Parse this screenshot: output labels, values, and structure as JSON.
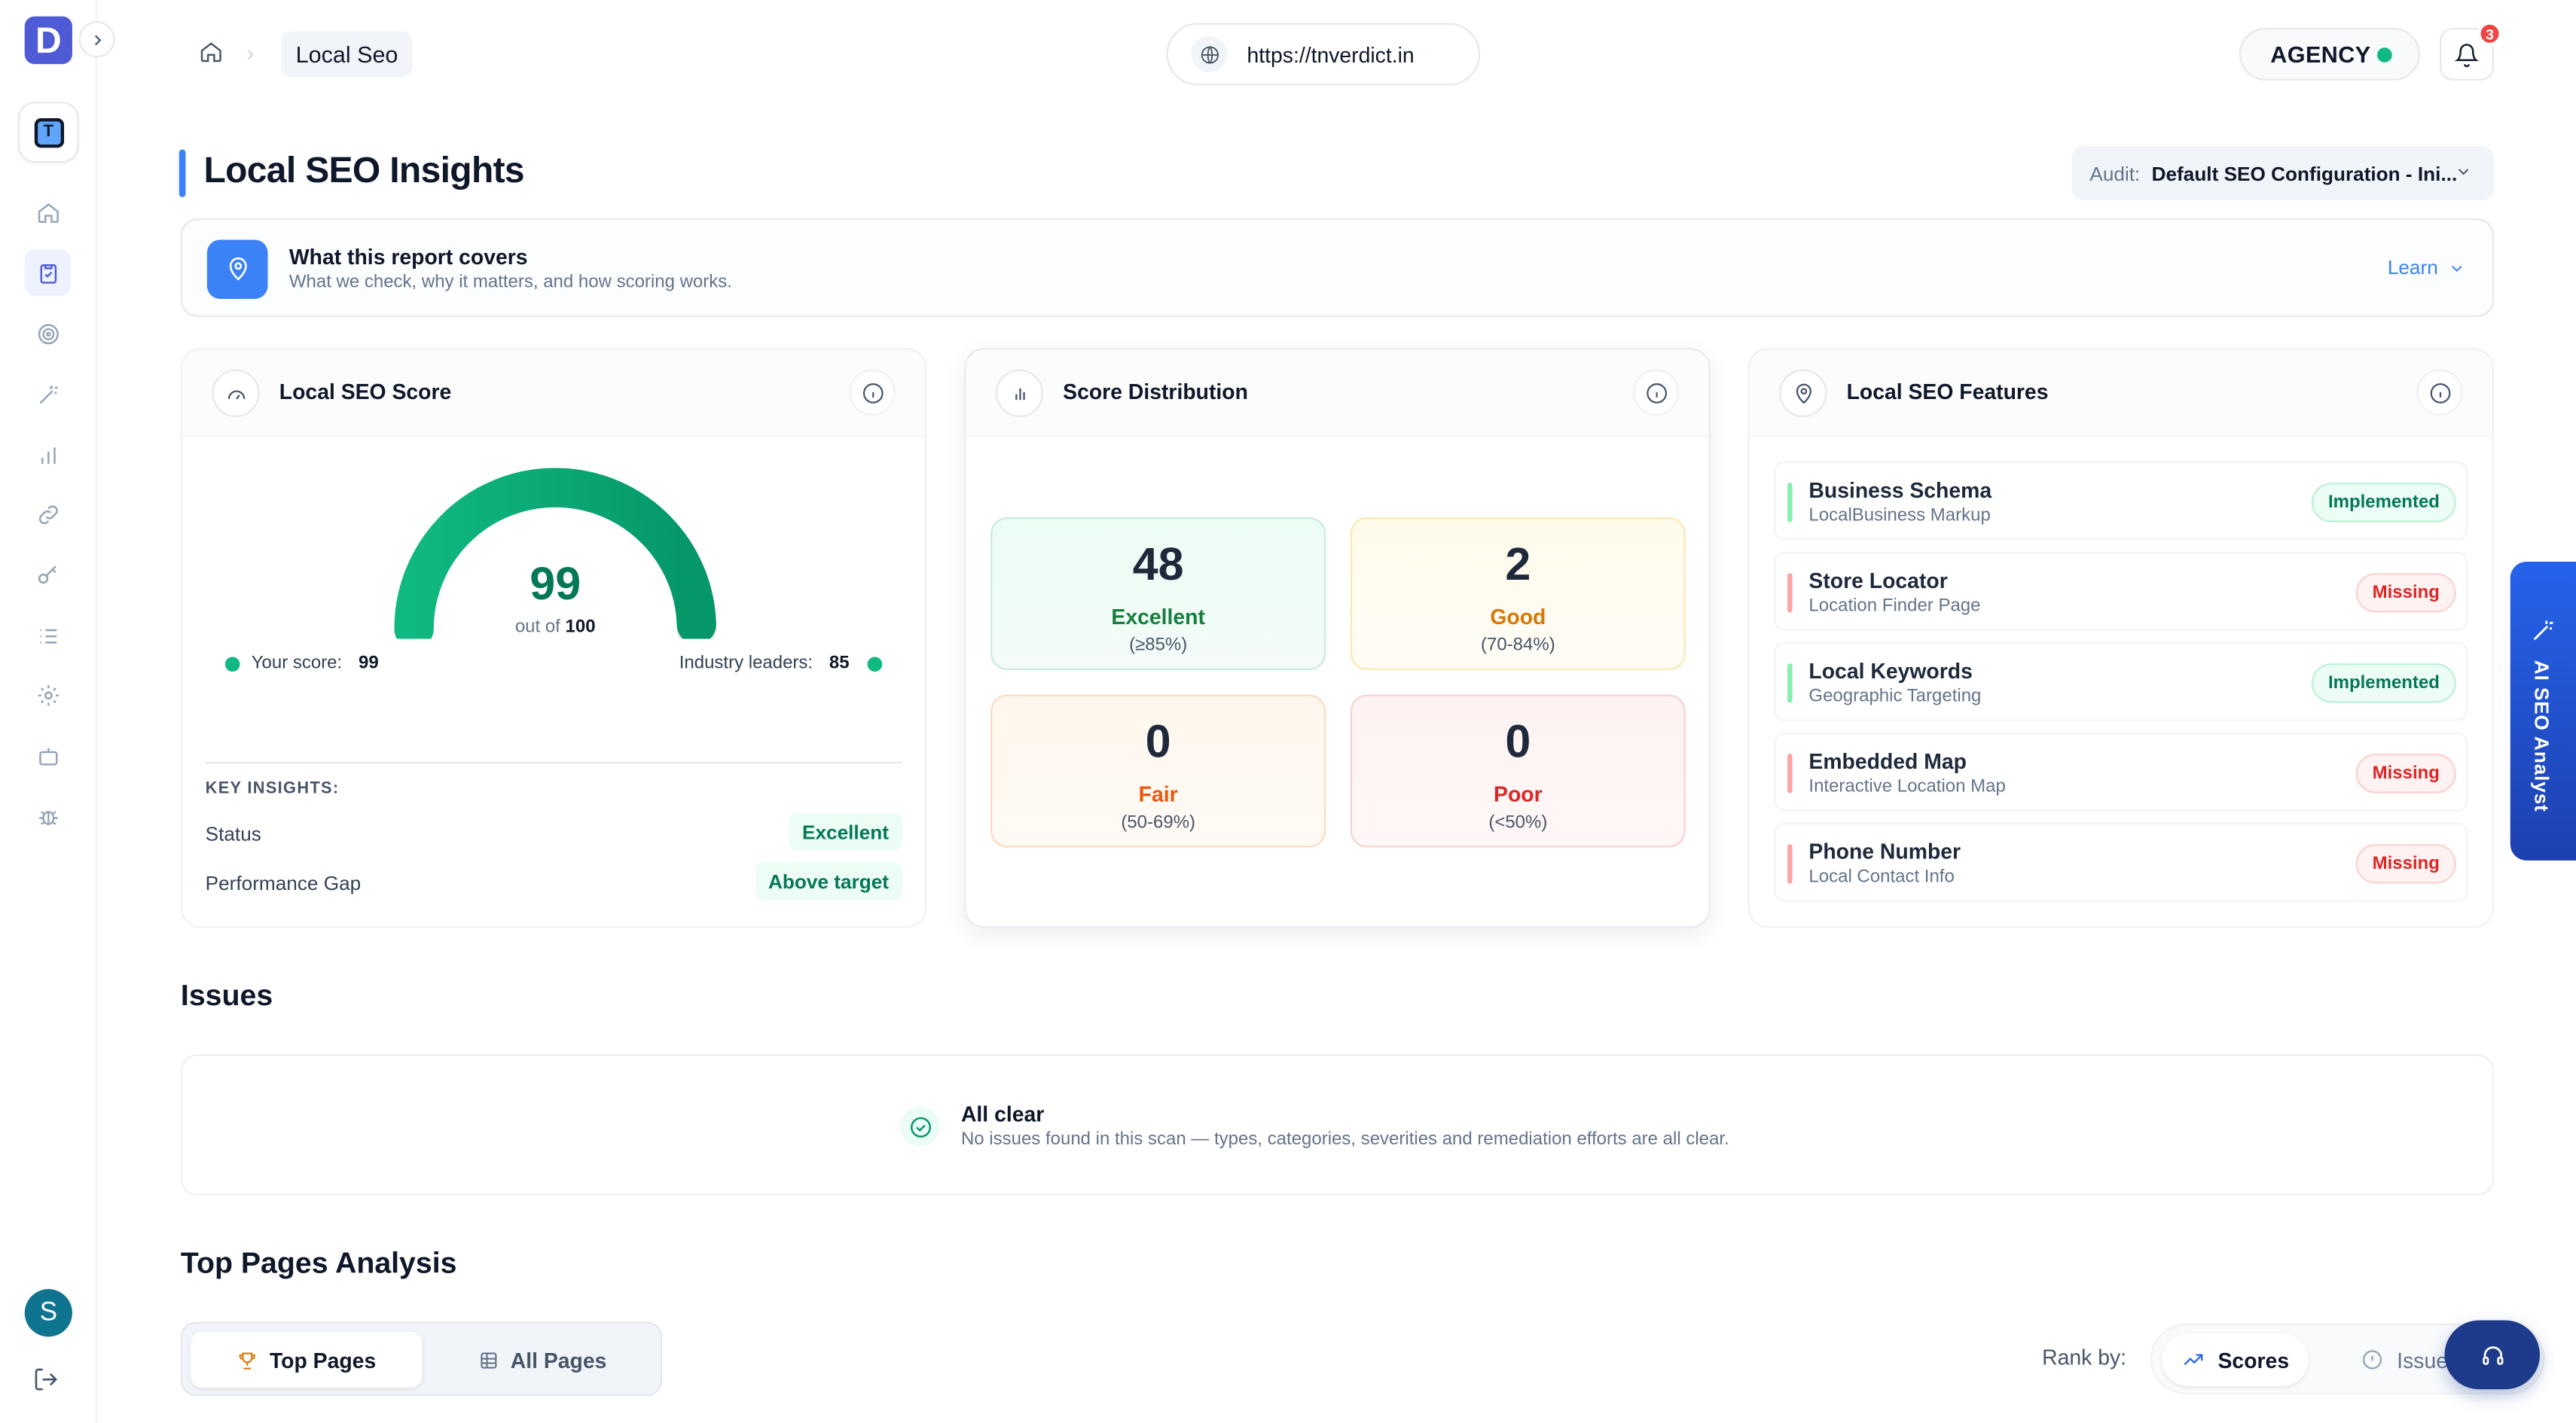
{
  "sidebar": {
    "logo_letter": "D",
    "workspace_letter": "T",
    "avatar_letter": "S",
    "nav_icons": [
      "home-icon",
      "clipboard-check-icon",
      "target-icon",
      "magic-wand-icon",
      "bar-chart-icon",
      "link-icon",
      "key-icon",
      "list-icon",
      "settings-icon",
      "bot-icon",
      "bug-icon"
    ],
    "active_item": "clipboard-check-icon"
  },
  "header": {
    "breadcrumb_current": "Local Seo",
    "url": "https://tnverdict.in",
    "plan_label": "AGENCY",
    "notification_count": "3"
  },
  "page": {
    "title": "Local SEO Insights",
    "audit_label": "Audit:",
    "audit_value": "Default SEO Configuration - Ini..."
  },
  "report_covers": {
    "title": "What this report covers",
    "subtitle": "What we check, why it matters, and how scoring works.",
    "learn_label": "Learn"
  },
  "score_card": {
    "title": "Local SEO Score",
    "score": "99",
    "score_value": 99,
    "out_of_prefix": "out of",
    "out_of": "100",
    "your_score_label": "Your score:",
    "your_score": "99",
    "leaders_label": "Industry leaders:",
    "leaders_score": "85",
    "insights_heading": "KEY INSIGHTS:",
    "insights": [
      {
        "label": "Status",
        "value": "Excellent"
      },
      {
        "label": "Performance Gap",
        "value": "Above target"
      }
    ]
  },
  "distribution": {
    "title": "Score Distribution",
    "boxes": [
      {
        "count": "48",
        "label": "Excellent",
        "range": "(≥85%)",
        "color": "#15803d"
      },
      {
        "count": "2",
        "label": "Good",
        "range": "(70-84%)",
        "color": "#d97706"
      },
      {
        "count": "0",
        "label": "Fair",
        "range": "(50-69%)",
        "color": "#ea580c"
      },
      {
        "count": "0",
        "label": "Poor",
        "range": "(<50%)",
        "color": "#dc2626"
      }
    ]
  },
  "features": {
    "title": "Local SEO Features",
    "items": [
      {
        "name": "Business Schema",
        "sub": "LocalBusiness Markup",
        "status": "Implemented"
      },
      {
        "name": "Store Locator",
        "sub": "Location Finder Page",
        "status": "Missing"
      },
      {
        "name": "Local Keywords",
        "sub": "Geographic Targeting",
        "status": "Implemented"
      },
      {
        "name": "Embedded Map",
        "sub": "Interactive Location Map",
        "status": "Missing"
      },
      {
        "name": "Phone Number",
        "sub": "Local Contact Info",
        "status": "Missing"
      }
    ]
  },
  "ai_tab": {
    "label": "AI SEO Analyst"
  },
  "issues": {
    "heading": "Issues",
    "clear_title": "All clear",
    "clear_sub": "No issues found in this scan — types, categories, severities and remediation efforts are all clear."
  },
  "top_pages": {
    "heading": "Top Pages Analysis",
    "tabs": [
      "Top Pages",
      "All Pages"
    ],
    "rank_label": "Rank by:",
    "rank_options": [
      "Scores",
      "Issues"
    ]
  },
  "colors": {
    "accent": "#3b82f6",
    "brand": "#4f5bd5",
    "success": "#10b981",
    "danger": "#ef4444"
  }
}
